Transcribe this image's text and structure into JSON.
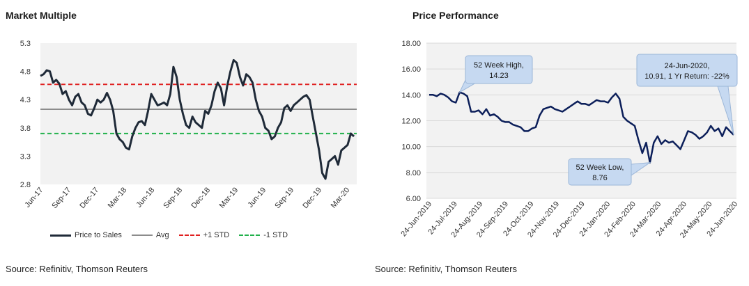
{
  "left_title": "Market Multiple",
  "right_title": "Price Performance",
  "left_source": "Source: Refinitiv, Thomson Reuters",
  "right_source": "Source: Refinitiv, Thomson Reuters",
  "colors": {
    "series": "#1f2a38",
    "avg": "#8c8c8c",
    "plus_std": "#e02020",
    "minus_std": "#22b14c",
    "price": "#0c1f5a",
    "plot_bg": "#f2f2f2",
    "callout_bg": "#c6d9f1"
  },
  "chart_data": [
    {
      "type": "line",
      "title": "Market Multiple",
      "ylim": [
        2.8,
        5.3
      ],
      "yticks": [
        "5.3",
        "4.8",
        "4.3",
        "3.8",
        "3.3",
        "2.8"
      ],
      "xticks": [
        "Jun-17",
        "Sep-17",
        "Dec-17",
        "Mar-18",
        "Jun-18",
        "Sep-18",
        "Dec-18",
        "Mar-19",
        "Jun-19",
        "Sep-19",
        "Dec-19",
        "Mar-20"
      ],
      "reference_lines": {
        "avg": 4.13,
        "plus_1_std": 4.57,
        "minus_1_std": 3.7
      },
      "legend": [
        "Price to Sales",
        "Avg",
        "+1 STD",
        "-1 STD"
      ],
      "series": [
        {
          "name": "Price to Sales",
          "values": [
            4.72,
            4.75,
            4.82,
            4.8,
            4.6,
            4.65,
            4.58,
            4.4,
            4.45,
            4.3,
            4.2,
            4.35,
            4.4,
            4.25,
            4.2,
            4.05,
            4.02,
            4.15,
            4.3,
            4.25,
            4.3,
            4.42,
            4.3,
            4.1,
            3.7,
            3.6,
            3.55,
            3.45,
            3.42,
            3.65,
            3.8,
            3.9,
            3.92,
            3.85,
            4.1,
            4.4,
            4.3,
            4.2,
            4.22,
            4.25,
            4.2,
            4.4,
            4.88,
            4.7,
            4.3,
            4.05,
            3.85,
            3.8,
            4.0,
            3.9,
            3.85,
            3.8,
            4.1,
            4.05,
            4.2,
            4.45,
            4.6,
            4.5,
            4.2,
            4.55,
            4.8,
            5.0,
            4.95,
            4.7,
            4.55,
            4.75,
            4.7,
            4.6,
            4.3,
            4.1,
            4.0,
            3.8,
            3.75,
            3.6,
            3.65,
            3.8,
            3.9,
            4.15,
            4.2,
            4.1,
            4.2,
            4.25,
            4.3,
            4.35,
            4.38,
            4.3,
            4.0,
            3.7,
            3.4,
            3.0,
            2.9,
            3.2,
            3.25,
            3.3,
            3.15,
            3.4,
            3.45,
            3.5,
            3.7,
            3.65
          ]
        }
      ]
    },
    {
      "type": "line",
      "title": "Price Performance",
      "ylim": [
        6.0,
        18.0
      ],
      "yticks": [
        "18.00",
        "16.00",
        "14.00",
        "12.00",
        "10.00",
        "8.00",
        "6.00"
      ],
      "xticks": [
        "24-Jun-2019",
        "24-Jul-2019",
        "24-Aug-2019",
        "24-Sep-2019",
        "24-Oct-2019",
        "24-Nov-2019",
        "24-Dec-2019",
        "24-Jan-2020",
        "24-Feb-2020",
        "24-Mar-2020",
        "24-Apr-2020",
        "24-May-2020",
        "24-Jun-2020"
      ],
      "annotations": [
        {
          "label": "52 Week High,",
          "label2": "14.23"
        },
        {
          "label": "52 Week Low,",
          "label2": "8.76"
        },
        {
          "label": "24-Jun-2020,",
          "label2": "10.91, 1 Yr Return: -22%"
        }
      ],
      "series": [
        {
          "name": "Price",
          "values": [
            14.0,
            14.0,
            13.9,
            14.1,
            14.0,
            13.8,
            13.5,
            13.4,
            14.2,
            14.1,
            13.9,
            12.7,
            12.7,
            12.8,
            12.5,
            12.9,
            12.4,
            12.5,
            12.3,
            12.0,
            11.9,
            11.9,
            11.7,
            11.6,
            11.5,
            11.2,
            11.2,
            11.4,
            11.5,
            12.4,
            12.9,
            13.0,
            13.1,
            12.9,
            12.8,
            12.7,
            12.9,
            13.1,
            13.3,
            13.5,
            13.3,
            13.3,
            13.2,
            13.4,
            13.6,
            13.5,
            13.5,
            13.4,
            13.8,
            14.1,
            13.7,
            12.3,
            12.0,
            11.8,
            11.6,
            10.5,
            9.5,
            10.3,
            8.76,
            10.3,
            10.8,
            10.2,
            10.5,
            10.3,
            10.4,
            10.1,
            9.8,
            10.5,
            11.2,
            11.1,
            10.9,
            10.6,
            10.8,
            11.1,
            11.6,
            11.2,
            11.4,
            10.8,
            11.5,
            11.2,
            10.91
          ]
        }
      ]
    }
  ]
}
